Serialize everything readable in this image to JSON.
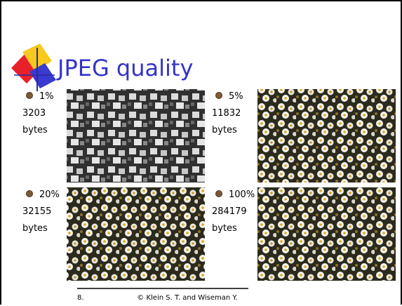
{
  "title": "JPEG quality",
  "items": [
    {
      "quality": "1%",
      "size": "3203",
      "unit": "bytes"
    },
    {
      "quality": "5%",
      "size": "11832",
      "unit": "bytes"
    },
    {
      "quality": "20%",
      "size": "32155",
      "unit": "bytes"
    },
    {
      "quality": "100%",
      "size": "284179",
      "unit": "bytes"
    }
  ],
  "footer": {
    "page": "8.",
    "credit": "© Klein S. T. and Wiseman Y."
  }
}
